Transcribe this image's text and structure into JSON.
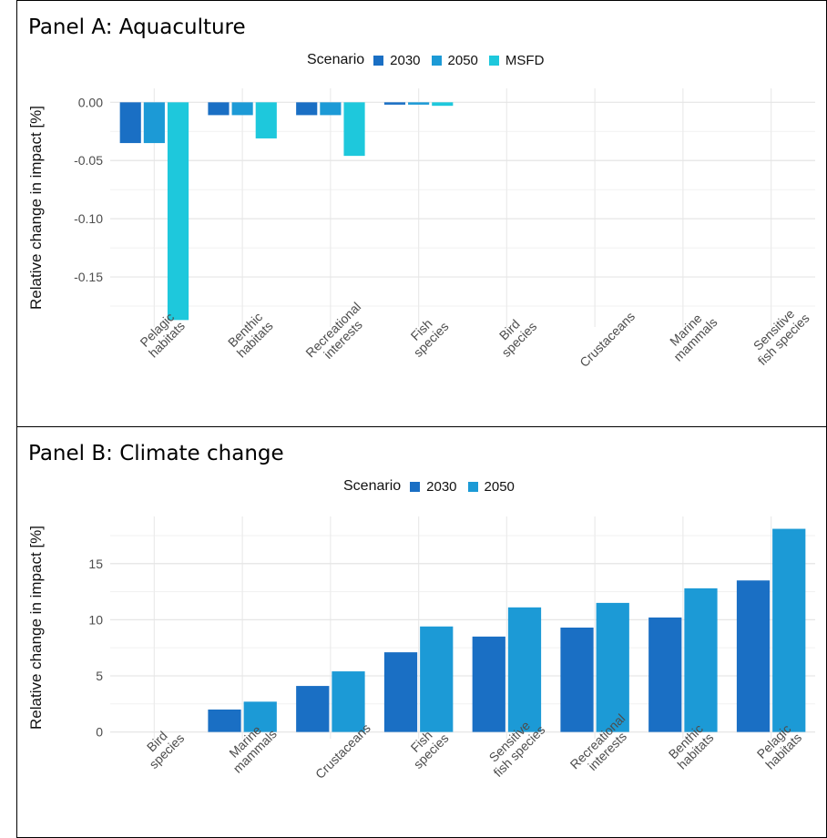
{
  "chart_data": [
    {
      "type": "bar",
      "panel_title": "Panel A: Aquaculture",
      "legend_title": "Scenario",
      "legend_position": "top",
      "ylabel": "Relative change in impact [%]",
      "ylim": [
        -0.193,
        0.012
      ],
      "yticks": [
        0.0,
        -0.05,
        -0.1,
        -0.15
      ],
      "ytick_labels": [
        "0.00",
        "-0.05",
        "-0.10",
        "-0.15"
      ],
      "grid": true,
      "categories": [
        "Pelagic\nhabitats",
        "Benthic\nhabitats",
        "Recreational\ninterests",
        "Fish\nspecies",
        "Bird\nspecies",
        "Crustaceans",
        "Marine\nmammals",
        "Sensitive\nfish species"
      ],
      "series": [
        {
          "name": "2030",
          "color": "#1a6fc4",
          "values": [
            -0.035,
            -0.011,
            -0.011,
            -0.002,
            0,
            0,
            0,
            0
          ]
        },
        {
          "name": "2050",
          "color": "#1c9ad6",
          "values": [
            -0.035,
            -0.011,
            -0.011,
            -0.002,
            0,
            0,
            0,
            0
          ]
        },
        {
          "name": "MSFD",
          "color": "#1ec8dc",
          "values": [
            -0.187,
            -0.031,
            -0.046,
            -0.003,
            0,
            0,
            0,
            0
          ]
        }
      ]
    },
    {
      "type": "bar",
      "panel_title": "Panel B: Climate change",
      "legend_title": "Scenario",
      "legend_position": "top",
      "ylabel": "Relative change in impact [%]",
      "ylim": [
        -0.6,
        19.2
      ],
      "yticks": [
        0,
        5,
        10,
        15
      ],
      "ytick_labels": [
        "0",
        "5",
        "10",
        "15"
      ],
      "grid": true,
      "categories": [
        "Bird\nspecies",
        "Marine\nmammals",
        "Crustaceans",
        "Fish\nspecies",
        "Sensitive\nfish species",
        "Recreational\ninterests",
        "Benthic\nhabitats",
        "Pelagic\nhabitats"
      ],
      "series": [
        {
          "name": "2030",
          "color": "#1a6fc4",
          "values": [
            0,
            2.0,
            4.1,
            7.1,
            8.5,
            9.3,
            10.2,
            13.5
          ]
        },
        {
          "name": "2050",
          "color": "#1c9ad6",
          "values": [
            0,
            2.7,
            5.4,
            9.4,
            11.1,
            11.5,
            12.8,
            18.1
          ]
        }
      ]
    }
  ]
}
